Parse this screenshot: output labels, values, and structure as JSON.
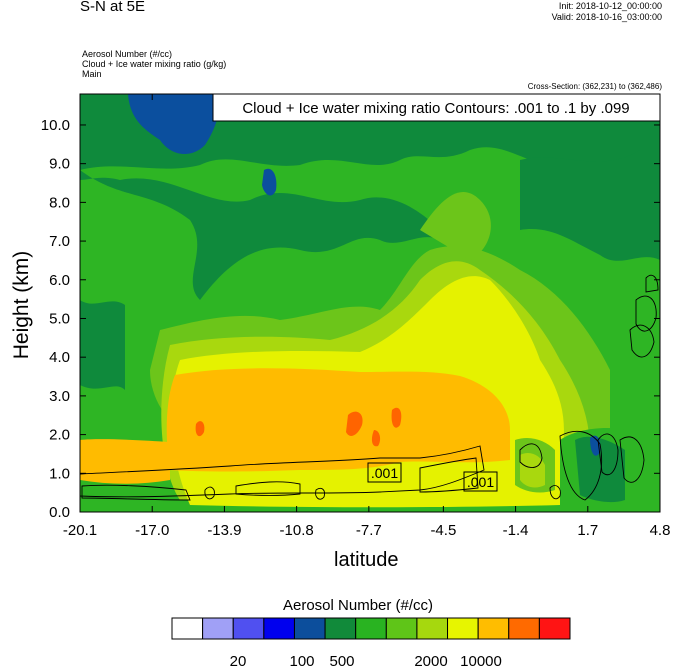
{
  "header": {
    "title": "S-N at 5E",
    "init": "Init: 2018-10-12_00:00:00",
    "valid": "Valid: 2018-10-16_03:00:00",
    "info_lines": [
      "Aerosol Number   (#/cc)",
      "Cloud + Ice water mixing ratio   (g/kg)",
      "Main"
    ],
    "cross_section": "Cross-Section: (362,231) to (362,486)"
  },
  "chart_data": {
    "type": "heatmap",
    "contour_label": "Cloud + Ice water mixing ratio Contours: .001 to .1 by .099",
    "xlabel": "latitude",
    "ylabel": "Height (km)",
    "x_ticks": [
      "-20.1",
      "-17.0",
      "-13.9",
      "-10.8",
      "-7.7",
      "-4.5",
      "-1.4",
      "1.7",
      "4.8"
    ],
    "y_ticks": [
      "0.0",
      "1.0",
      "2.0",
      "3.0",
      "4.0",
      "5.0",
      "6.0",
      "7.0",
      "8.0",
      "9.0",
      "10.0"
    ],
    "xlim": [
      -20.1,
      4.8
    ],
    "ylim": [
      0.0,
      10.8
    ],
    "contour_value_labels": [
      ".001",
      ".001"
    ],
    "colorbar": {
      "title": "Aerosol Number  (#/cc)",
      "colors": [
        "#ffffff",
        "#a0a0f6",
        "#5050f0",
        "#0000ee",
        "#0c4e9c",
        "#118a3a",
        "#29b321",
        "#5fc518",
        "#a6d80e",
        "#e7f500",
        "#ffbd00",
        "#ff6a00",
        "#ff1414"
      ],
      "tick_labels": [
        "20",
        "100",
        "500",
        "2000",
        "10000"
      ]
    },
    "regions": {
      "dark_green_band": "#0f8a3c",
      "mid_green": "#2eb524",
      "light_green": "#6cc51a",
      "yellow_green": "#a9d80e",
      "yellow": "#e5f200",
      "orange": "#ffbb00",
      "red_orange": "#ff6400",
      "blue": "#0b4f9e"
    }
  }
}
